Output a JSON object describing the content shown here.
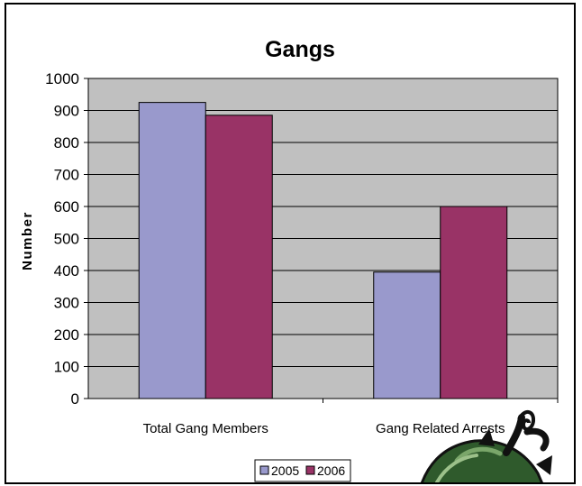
{
  "chart_data": {
    "type": "bar",
    "title": "Gangs",
    "xlabel": "",
    "ylabel": "Number",
    "categories": [
      "Total Gang Members",
      "Gang Related Arrests"
    ],
    "series": [
      {
        "name": "2005",
        "values": [
          925,
          395
        ]
      },
      {
        "name": "2006",
        "values": [
          885,
          600
        ]
      }
    ],
    "ylim": [
      0,
      1000
    ],
    "yticks": [
      0,
      100,
      200,
      300,
      400,
      500,
      600,
      700,
      800,
      900,
      1000
    ],
    "grid": true,
    "legend_position": "bottom",
    "colors": {
      "2005": "#9999cc",
      "2006": "#993366",
      "plot_background": "#c0c0c0"
    }
  },
  "decoration": {
    "icon": "turtle-logo-icon"
  }
}
